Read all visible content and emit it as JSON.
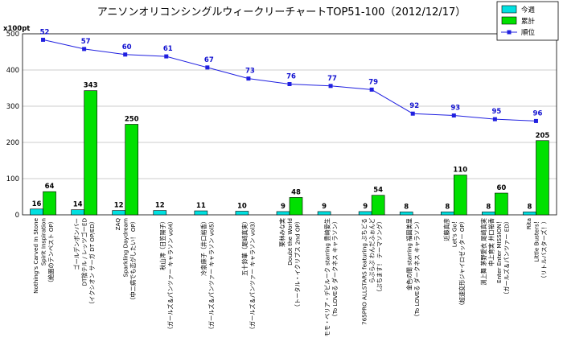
{
  "chart_data": {
    "type": "bar",
    "title": "アニソンオリコンシングルウィークリーチャートTOP51-100（2012/12/17）",
    "unit_label": "x100pt",
    "ylim": [
      0,
      500
    ],
    "yticks": [
      0,
      100,
      200,
      300,
      400,
      500
    ],
    "grid": true,
    "legend_position": "top-right",
    "categories": [
      [
        "Nothing's Carved In Stone",
        "Spirit Inspiration",
        "（絶園のテンペスト OP）"
      ],
      [
        "ゴールデンボンバー",
        "DT捨テル / レッツゴーED",
        "（イクシオン サーガ DT OP/ED）"
      ],
      [
        "ZAQ",
        "Sparkling Daydream",
        "（中二病でも恋がしたい！ OP）"
      ],
      [
        "秋山澪（日笠陽子）",
        "（ガールズ＆パンツァー キャラソン vol4）"
      ],
      [
        "冷泉麻子（井口裕香）",
        "（ガールズ＆パンツァー キャラソン vol5）"
      ],
      [
        "五十鈴華（尾崎真実）",
        "（ガールズ＆パンツァー キャラソン vol3）"
      ],
      [
        "栗林みな実",
        "Doubt the World",
        "（トータル・イクリプス 2nd OP）"
      ],
      [
        "モモ・ベリア・デビルーク starring 豊崎愛生",
        "（To LOVEる ダークネス キャラソン）"
      ],
      [
        "765PRO ALLSTARS featuring ぷちどる",
        "らぷらぷ わんだふぉんど",
        "（ぷちます！ テーマソング）"
      ],
      [
        "金色の闇 starring 福圓美里",
        "（To LOVEる ダークネス キャラソン）"
      ],
      [
        "近藤真彦",
        "Let's Go！",
        "（超速変形ジャイロゼッター OP）"
      ],
      [
        "渕上舞 茅野愛衣 尾崎真実",
        "中上育実 井口裕香",
        "Enter Enter MISSION！",
        "（ガールズ＆パンツァー ED）"
      ],
      [
        "Rita",
        "Little Busters！",
        "（リトルバスターズ！）"
      ]
    ],
    "series": [
      {
        "name": "今週",
        "type": "bar",
        "color": "#00e0e0",
        "values": [
          16,
          14,
          12,
          12,
          11,
          10,
          9,
          9,
          9,
          8,
          8,
          8,
          8
        ]
      },
      {
        "name": "累計",
        "type": "bar",
        "color": "#00e000",
        "values": [
          64,
          343,
          250,
          null,
          null,
          null,
          48,
          null,
          54,
          null,
          110,
          60,
          205
        ]
      },
      {
        "name": "順位",
        "type": "line",
        "color": "#2020e0",
        "values": [
          52,
          57,
          60,
          61,
          67,
          73,
          76,
          77,
          79,
          92,
          93,
          95,
          96
        ]
      }
    ]
  }
}
